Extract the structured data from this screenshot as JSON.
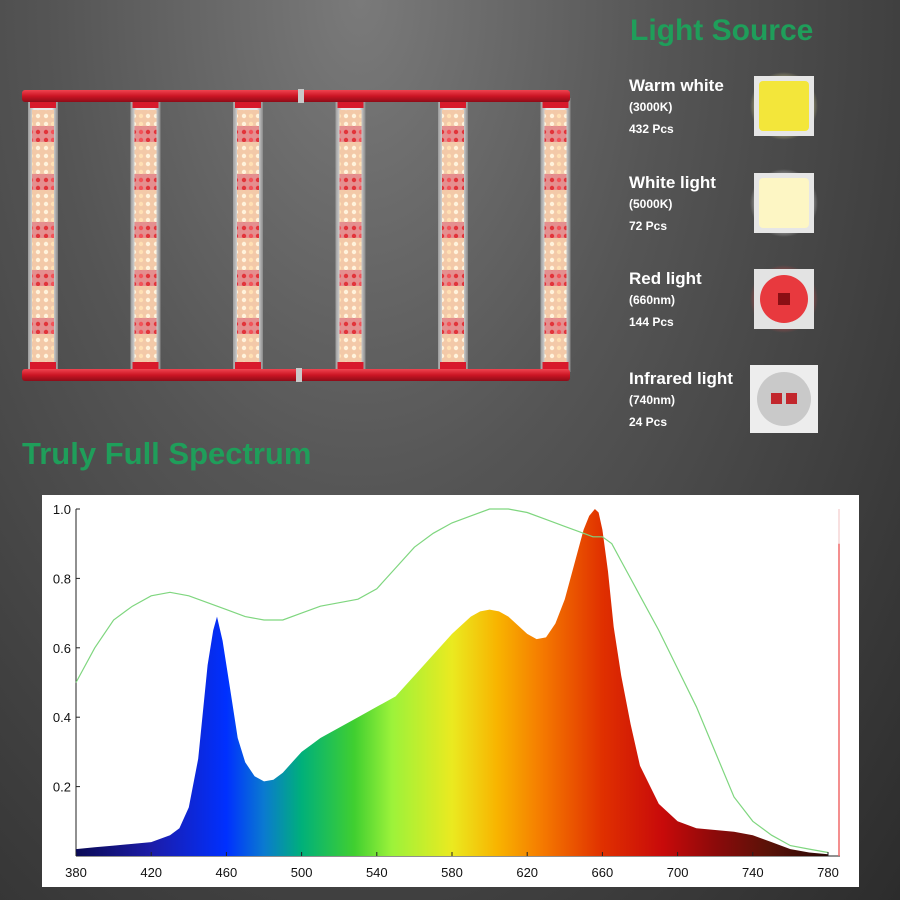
{
  "header": {
    "light_source_title": "Light Source",
    "spectrum_title": "Truly Full Spectrum"
  },
  "product": {
    "led_strips": 6,
    "frame_color": "#d8192b"
  },
  "light_sources": [
    {
      "name": "Warm white",
      "spec": "(3000K)",
      "count": "432 Pcs",
      "chip_color": "#f3e63a",
      "chip": "warm-white-led-chip"
    },
    {
      "name": "White light",
      "spec": "(5000K)",
      "count": "72 Pcs",
      "chip_color": "#fdf6c4",
      "chip": "white-led-chip"
    },
    {
      "name": "Red light",
      "spec": "(660nm)",
      "count": "144 Pcs",
      "chip_color": "#e8393e",
      "chip": "red-led-chip"
    },
    {
      "name": "Infrared light",
      "spec": "(740nm)",
      "count": "24 Pcs",
      "chip_color": "#c9c9c9",
      "chip": "infrared-led-chip"
    }
  ],
  "chart_data": {
    "type": "area",
    "title": "Truly Full Spectrum",
    "xlabel": "",
    "ylabel": "",
    "xlim": [
      380,
      780
    ],
    "ylim": [
      0,
      1.0
    ],
    "x_ticks": [
      380,
      420,
      460,
      500,
      540,
      580,
      620,
      660,
      700,
      740,
      780
    ],
    "y_ticks": [
      0.2,
      0.4,
      0.6,
      0.8,
      1.0
    ],
    "y_tick_labels": [
      "0.2",
      "0.4",
      "0.6",
      "0.8",
      "1.0"
    ],
    "grid": false,
    "legend": "none",
    "series": [
      {
        "style": "filled-spectrum",
        "x": [
          380,
          390,
          400,
          410,
          420,
          430,
          435,
          440,
          445,
          450,
          453,
          455,
          458,
          462,
          466,
          470,
          475,
          480,
          485,
          490,
          495,
          500,
          505,
          510,
          520,
          530,
          540,
          550,
          560,
          570,
          580,
          590,
          595,
          600,
          605,
          610,
          615,
          620,
          625,
          630,
          635,
          640,
          645,
          650,
          653,
          656,
          658,
          660,
          663,
          666,
          670,
          675,
          680,
          690,
          700,
          710,
          720,
          730,
          740,
          750,
          760,
          770,
          780
        ],
        "y": [
          0.02,
          0.025,
          0.03,
          0.035,
          0.04,
          0.06,
          0.08,
          0.14,
          0.28,
          0.55,
          0.65,
          0.69,
          0.62,
          0.48,
          0.34,
          0.27,
          0.23,
          0.215,
          0.22,
          0.24,
          0.27,
          0.3,
          0.32,
          0.34,
          0.37,
          0.4,
          0.43,
          0.46,
          0.52,
          0.58,
          0.64,
          0.69,
          0.705,
          0.71,
          0.705,
          0.69,
          0.665,
          0.64,
          0.625,
          0.63,
          0.67,
          0.74,
          0.84,
          0.94,
          0.98,
          1.0,
          0.99,
          0.94,
          0.82,
          0.66,
          0.52,
          0.38,
          0.26,
          0.15,
          0.1,
          0.08,
          0.075,
          0.07,
          0.06,
          0.04,
          0.02,
          0.01,
          0.005
        ]
      },
      {
        "style": "line",
        "color": "#7fd67f",
        "x": [
          380,
          390,
          400,
          410,
          420,
          430,
          440,
          450,
          460,
          470,
          480,
          490,
          500,
          510,
          520,
          530,
          540,
          550,
          560,
          570,
          580,
          590,
          600,
          610,
          620,
          630,
          640,
          650,
          655,
          660,
          665,
          670,
          680,
          690,
          700,
          710,
          720,
          730,
          740,
          750,
          760,
          770,
          780
        ],
        "y": [
          0.5,
          0.6,
          0.68,
          0.72,
          0.75,
          0.76,
          0.75,
          0.73,
          0.71,
          0.69,
          0.68,
          0.68,
          0.7,
          0.72,
          0.73,
          0.74,
          0.77,
          0.83,
          0.89,
          0.93,
          0.96,
          0.98,
          1.0,
          1.0,
          0.99,
          0.97,
          0.95,
          0.93,
          0.92,
          0.92,
          0.9,
          0.85,
          0.75,
          0.65,
          0.54,
          0.43,
          0.3,
          0.17,
          0.1,
          0.06,
          0.03,
          0.02,
          0.01
        ]
      }
    ]
  }
}
